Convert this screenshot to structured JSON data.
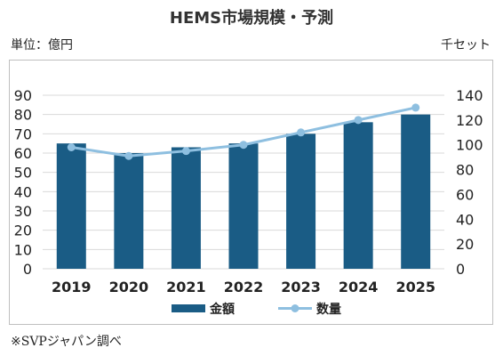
{
  "chart_data": {
    "type": "bar",
    "title": "HEMS市場規模・予測",
    "unit_left": "単位：億円",
    "unit_right": "千セット",
    "note": "※SVPジャパン調べ",
    "categories": [
      "2019",
      "2020",
      "2021",
      "2022",
      "2023",
      "2024",
      "2025"
    ],
    "series": [
      {
        "name": "金額",
        "type": "bar",
        "axis": "left",
        "color": "#1a5c85",
        "values": [
          65,
          60,
          63,
          65,
          70,
          76,
          80
        ]
      },
      {
        "name": "数量",
        "type": "line",
        "axis": "right",
        "color": "#8ebfe0",
        "values": [
          98,
          91,
          95,
          100,
          110,
          120,
          130
        ]
      }
    ],
    "y_left": {
      "min": 0,
      "max": 90,
      "step": 10
    },
    "y_right": {
      "min": 0,
      "max": 140,
      "step": 20
    },
    "grid": true,
    "legend": "bottom"
  }
}
